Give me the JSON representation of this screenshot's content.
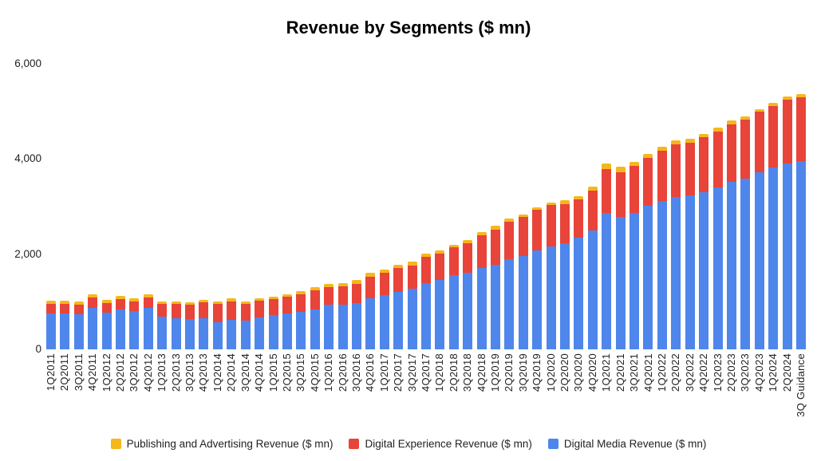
{
  "title": "Revenue by Segments ($ mn)",
  "y_axis": {
    "ticks": [
      {
        "label": "6,000",
        "value": 6000
      },
      {
        "label": "4,000",
        "value": 4000
      },
      {
        "label": "2,000",
        "value": 2000
      },
      {
        "label": "0",
        "value": 0
      }
    ]
  },
  "legend": {
    "items": [
      {
        "label": "Publishing and Advertising Revenue ($ mn)",
        "color": "#F5B71C"
      },
      {
        "label": "Digital Experience Revenue ($ mn)",
        "color": "#E8443A"
      },
      {
        "label": "Digital Media Revenue ($ mn)",
        "color": "#4E86EC"
      }
    ]
  },
  "chart_data": {
    "type": "bar",
    "stacked": true,
    "title": "Revenue by Segments ($ mn)",
    "xlabel": "",
    "ylabel": "",
    "ylim": [
      0,
      6000
    ],
    "y_ticks": [
      0,
      2000,
      4000,
      6000
    ],
    "grid": false,
    "legend_position": "bottom",
    "categories": [
      "1Q2011",
      "2Q2011",
      "3Q2011",
      "4Q2011",
      "1Q2012",
      "2Q2012",
      "3Q2012",
      "4Q2012",
      "1Q2013",
      "2Q2013",
      "3Q2013",
      "4Q2013",
      "1Q2014",
      "2Q2014",
      "3Q2014",
      "4Q2014",
      "1Q2015",
      "2Q2015",
      "3Q2015",
      "4Q2015",
      "1Q2016",
      "2Q2016",
      "3Q2016",
      "4Q2016",
      "1Q2017",
      "2Q2017",
      "3Q2017",
      "4Q2017",
      "1Q2018",
      "2Q2018",
      "3Q2018",
      "4Q2018",
      "1Q2019",
      "2Q2019",
      "3Q2019",
      "4Q2019",
      "1Q2020",
      "2Q2020",
      "3Q2020",
      "4Q2020",
      "1Q2021",
      "2Q2021",
      "3Q2021",
      "4Q2021",
      "1Q2022",
      "2Q2022",
      "3Q2022",
      "4Q2022",
      "1Q2023",
      "2Q2023",
      "3Q2023",
      "4Q2023",
      "1Q2024",
      "2Q2024",
      "3Q Guidance"
    ],
    "series": [
      {
        "name": "Digital Media Revenue ($ mn)",
        "short": "digital-media",
        "color": "#4E86EC",
        "values": [
          755,
          750,
          740,
          865,
          770,
          845,
          805,
          865,
          690,
          655,
          630,
          650,
          574,
          624,
          602,
          668,
          727,
          762,
          789,
          846,
          933,
          943,
          974,
          1068,
          1137,
          1213,
          1270,
          1389,
          1461,
          1554,
          1610,
          1713,
          1777,
          1891,
          1962,
          2078,
          2170,
          2229,
          2340,
          2500,
          2861,
          2790,
          2870,
          3010,
          3111,
          3201,
          3230,
          3303,
          3403,
          3514,
          3590,
          3723,
          3820,
          3913,
          3960
        ]
      },
      {
        "name": "Digital Experience Revenue ($ mn)",
        "short": "digital-experience",
        "color": "#E8443A",
        "values": [
          205,
          205,
          205,
          219,
          207,
          211,
          208,
          220,
          258,
          296,
          310,
          335,
          377,
          387,
          346,
          348,
          327,
          344,
          375,
          390,
          377,
          374,
          404,
          465,
          477,
          495,
          486,
          550,
          554,
          586,
          614,
          689,
          743,
          784,
          821,
          859,
          858,
          826,
          806,
          833,
          934,
          938,
          985,
          1012,
          1063,
          1101,
          1119,
          1150,
          1177,
          1220,
          1229,
          1273,
          1293,
          1329,
          1340
        ]
      },
      {
        "name": "Publishing and Advertising Revenue ($ mn)",
        "short": "publishing-advertising",
        "color": "#F5B71C",
        "values": [
          68,
          68,
          68,
          68,
          68,
          68,
          68,
          68,
          60,
          60,
          55,
          53,
          57,
          57,
          57,
          57,
          57,
          56,
          54,
          71,
          73,
          82,
          86,
          81,
          68,
          64,
          85,
          68,
          64,
          55,
          67,
          62,
          81,
          69,
          51,
          55,
          63,
          73,
          79,
          91,
          110,
          107,
          80,
          88,
          88,
          84,
          84,
          72,
          75,
          82,
          71,
          52,
          69,
          67,
          70
        ]
      }
    ]
  }
}
